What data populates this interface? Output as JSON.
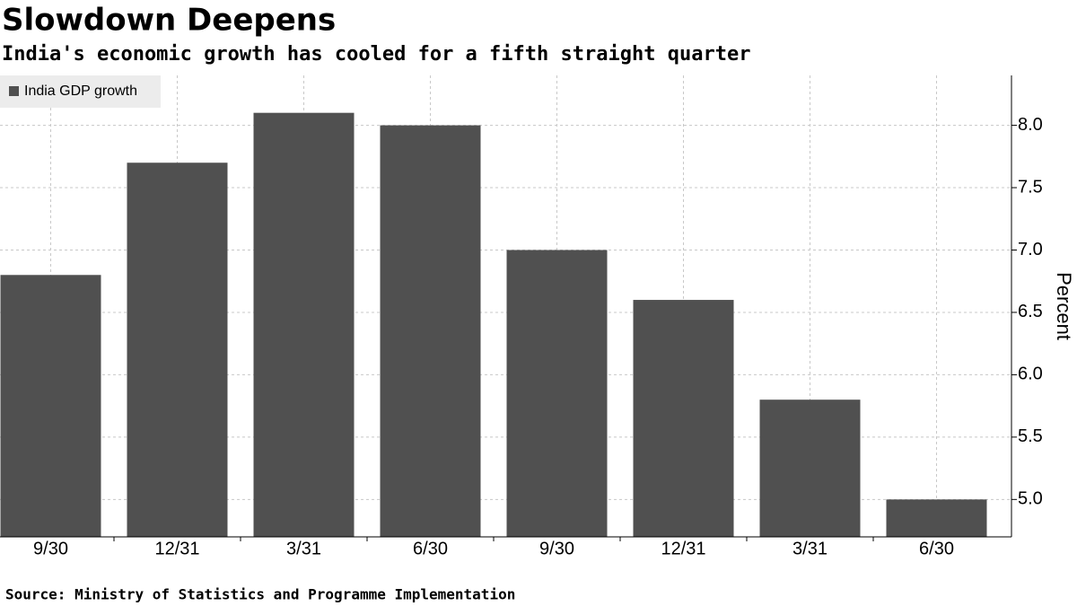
{
  "chart_data": {
    "type": "bar",
    "title": "Slowdown Deepens",
    "subtitle": "India's economic growth has cooled for a fifth straight quarter",
    "source": "Source: Ministry of Statistics and Programme Implementation",
    "y_label": "Percent",
    "categories": [
      "9/30",
      "12/31",
      "3/31",
      "6/30",
      "9/30",
      "12/31",
      "3/31",
      "6/30"
    ],
    "series": [
      {
        "name": "India GDP growth",
        "color": "#505050",
        "values": [
          6.8,
          7.7,
          8.1,
          8.0,
          7.0,
          6.6,
          5.8,
          5.0
        ]
      }
    ],
    "ylim": [
      4.7,
      8.4
    ],
    "yticks": [
      {
        "value": 5,
        "label": "5.0"
      },
      5.5,
      {
        "value": 6,
        "label": "6.0"
      },
      6.5,
      {
        "value": 7,
        "label": "7.0"
      },
      7.5,
      {
        "value": 8,
        "label": "8.0"
      }
    ],
    "grid": true,
    "legend": "top-left"
  }
}
